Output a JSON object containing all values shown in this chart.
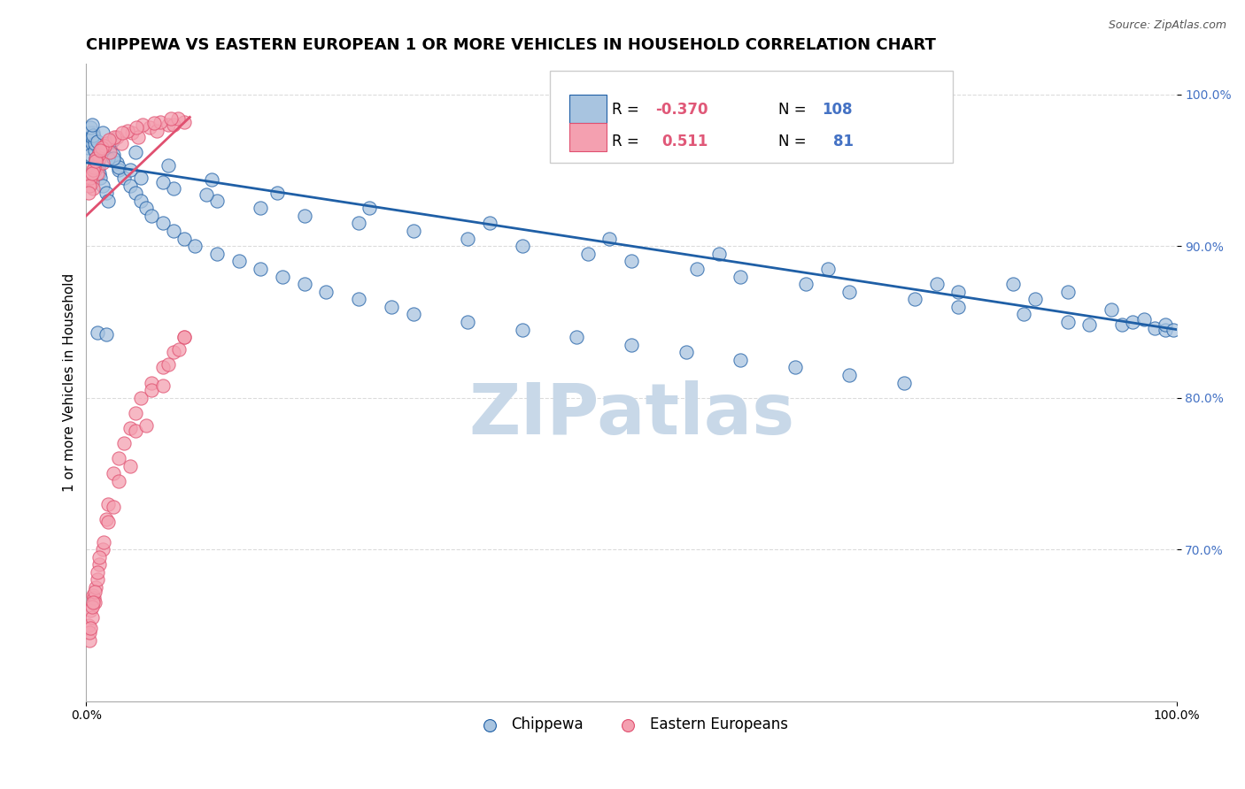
{
  "title": "CHIPPEWA VS EASTERN EUROPEAN 1 OR MORE VEHICLES IN HOUSEHOLD CORRELATION CHART",
  "source_text": "Source: ZipAtlas.com",
  "ylabel": "1 or more Vehicles in Household",
  "xlim": [
    0.0,
    1.0
  ],
  "ylim": [
    0.6,
    1.02
  ],
  "yticks": [
    0.7,
    0.8,
    0.9,
    1.0
  ],
  "ytick_labels": [
    "70.0%",
    "80.0%",
    "90.0%",
    "100.0%"
  ],
  "xtick_labels": [
    "0.0%",
    "100.0%"
  ],
  "color_blue": "#a8c4e0",
  "color_pink": "#f4a0b0",
  "line_color_blue": "#1f5fa6",
  "line_color_pink": "#e05070",
  "legend_r_color": "#e05878",
  "legend_n_color": "#4472c4",
  "watermark": "ZIPatlas",
  "watermark_color": "#c8d8e8",
  "title_fontsize": 13,
  "axis_label_fontsize": 11,
  "tick_fontsize": 10,
  "chippewa_x": [
    0.002,
    0.003,
    0.004,
    0.005,
    0.006,
    0.007,
    0.008,
    0.009,
    0.01,
    0.011,
    0.012,
    0.013,
    0.015,
    0.018,
    0.02,
    0.022,
    0.025,
    0.028,
    0.03,
    0.035,
    0.04,
    0.045,
    0.05,
    0.055,
    0.06,
    0.07,
    0.08,
    0.09,
    0.1,
    0.12,
    0.14,
    0.16,
    0.18,
    0.2,
    0.22,
    0.25,
    0.28,
    0.3,
    0.35,
    0.4,
    0.45,
    0.5,
    0.55,
    0.6,
    0.65,
    0.7,
    0.75,
    0.8,
    0.85,
    0.9,
    0.003,
    0.005,
    0.008,
    0.012,
    0.02,
    0.03,
    0.05,
    0.08,
    0.12,
    0.2,
    0.3,
    0.4,
    0.5,
    0.6,
    0.7,
    0.8,
    0.9,
    0.95,
    0.98,
    0.99,
    0.004,
    0.006,
    0.01,
    0.016,
    0.025,
    0.04,
    0.07,
    0.11,
    0.16,
    0.25,
    0.35,
    0.46,
    0.56,
    0.66,
    0.76,
    0.86,
    0.92,
    0.96,
    0.005,
    0.015,
    0.025,
    0.045,
    0.075,
    0.115,
    0.175,
    0.26,
    0.37,
    0.48,
    0.58,
    0.68,
    0.78,
    0.87,
    0.94,
    0.97,
    0.99,
    0.997,
    0.01,
    0.018
  ],
  "chippewa_y": [
    0.965,
    0.97,
    0.96,
    0.968,
    0.975,
    0.972,
    0.963,
    0.958,
    0.955,
    0.952,
    0.948,
    0.945,
    0.94,
    0.935,
    0.93,
    0.965,
    0.96,
    0.955,
    0.95,
    0.945,
    0.94,
    0.935,
    0.93,
    0.925,
    0.92,
    0.915,
    0.91,
    0.905,
    0.9,
    0.895,
    0.89,
    0.885,
    0.88,
    0.875,
    0.87,
    0.865,
    0.86,
    0.855,
    0.85,
    0.845,
    0.84,
    0.835,
    0.83,
    0.825,
    0.82,
    0.815,
    0.81,
    0.87,
    0.875,
    0.87,
    0.975,
    0.972,
    0.968,
    0.962,
    0.958,
    0.952,
    0.945,
    0.938,
    0.93,
    0.92,
    0.91,
    0.9,
    0.89,
    0.88,
    0.87,
    0.86,
    0.85,
    0.848,
    0.846,
    0.845,
    0.978,
    0.973,
    0.969,
    0.964,
    0.958,
    0.95,
    0.942,
    0.934,
    0.925,
    0.915,
    0.905,
    0.895,
    0.885,
    0.875,
    0.865,
    0.855,
    0.848,
    0.85,
    0.98,
    0.975,
    0.97,
    0.962,
    0.953,
    0.944,
    0.935,
    0.925,
    0.915,
    0.905,
    0.895,
    0.885,
    0.875,
    0.865,
    0.858,
    0.852,
    0.848,
    0.845,
    0.843,
    0.842
  ],
  "eastern_x": [
    0.002,
    0.003,
    0.004,
    0.005,
    0.006,
    0.007,
    0.008,
    0.009,
    0.01,
    0.012,
    0.015,
    0.018,
    0.02,
    0.025,
    0.03,
    0.035,
    0.04,
    0.045,
    0.05,
    0.06,
    0.07,
    0.08,
    0.09,
    0.003,
    0.005,
    0.008,
    0.012,
    0.02,
    0.03,
    0.045,
    0.06,
    0.075,
    0.09,
    0.004,
    0.006,
    0.01,
    0.016,
    0.025,
    0.04,
    0.055,
    0.07,
    0.085,
    0.005,
    0.008,
    0.012,
    0.018,
    0.028,
    0.042,
    0.058,
    0.075,
    0.09,
    0.006,
    0.01,
    0.015,
    0.022,
    0.032,
    0.048,
    0.065,
    0.08,
    0.004,
    0.007,
    0.011,
    0.017,
    0.026,
    0.038,
    0.052,
    0.068,
    0.084,
    0.003,
    0.006,
    0.009,
    0.014,
    0.021,
    0.033,
    0.046,
    0.062,
    0.078,
    0.002,
    0.005,
    0.009,
    0.013
  ],
  "eastern_y": [
    0.65,
    0.64,
    0.66,
    0.655,
    0.67,
    0.668,
    0.665,
    0.675,
    0.68,
    0.69,
    0.7,
    0.72,
    0.73,
    0.75,
    0.76,
    0.77,
    0.78,
    0.79,
    0.8,
    0.81,
    0.82,
    0.83,
    0.84,
    0.645,
    0.662,
    0.672,
    0.695,
    0.718,
    0.745,
    0.778,
    0.805,
    0.822,
    0.84,
    0.648,
    0.665,
    0.685,
    0.705,
    0.728,
    0.755,
    0.782,
    0.808,
    0.832,
    0.942,
    0.95,
    0.958,
    0.968,
    0.972,
    0.975,
    0.978,
    0.98,
    0.982,
    0.938,
    0.948,
    0.955,
    0.962,
    0.968,
    0.972,
    0.976,
    0.98,
    0.945,
    0.952,
    0.96,
    0.966,
    0.972,
    0.976,
    0.98,
    0.982,
    0.984,
    0.94,
    0.95,
    0.958,
    0.965,
    0.97,
    0.975,
    0.978,
    0.981,
    0.984,
    0.935,
    0.948,
    0.956,
    0.963
  ],
  "blue_trend_y_start": 0.955,
  "blue_trend_y_end": 0.845,
  "pink_trend_y_start": 0.92,
  "pink_trend_y_end": 0.985,
  "pink_trend_x_end": 0.095
}
